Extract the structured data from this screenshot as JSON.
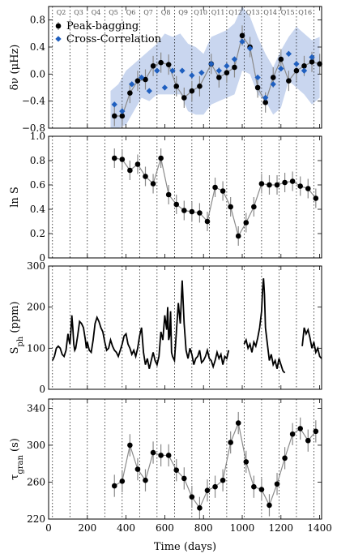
{
  "colors": {
    "black": "#000000",
    "blue": "#1f5fbf",
    "band": "#c9d6ef",
    "connector": "#8a8a8a"
  },
  "quarters": {
    "labels": [
      "Q2",
      "Q3",
      "Q4",
      "Q5",
      "Q6",
      "Q7",
      "Q8",
      "Q9",
      "Q10",
      "Q11",
      "Q12",
      "Q13",
      "Q14",
      "Q15",
      "Q16"
    ],
    "boundaries": [
      20,
      110,
      200,
      290,
      380,
      470,
      560,
      650,
      740,
      830,
      920,
      1010,
      1100,
      1190,
      1280,
      1370
    ]
  },
  "x_axis": {
    "label": "Time (days)",
    "range": [
      0,
      1410
    ],
    "ticks": [
      0,
      200,
      400,
      600,
      800,
      1000,
      1200,
      1400
    ]
  },
  "chart_data": [
    {
      "type": "scatter",
      "ylabel": "δν (μHz)",
      "ylim": [
        -0.8,
        1.0
      ],
      "yticks": [
        -0.8,
        -0.4,
        0.0,
        0.4,
        0.8
      ],
      "ytick_labels": [
        "−0.8",
        "−0.4",
        "0.0",
        "0.4",
        "0.8"
      ],
      "legend": {
        "placement": "top-left",
        "entries": [
          "Peak-bagging",
          "Cross-Correlation"
        ]
      },
      "band": {
        "x": [
          320,
          360,
          400,
          440,
          480,
          520,
          560,
          600,
          640,
          680,
          720,
          760,
          800,
          840,
          880,
          920,
          960,
          1000,
          1040,
          1080,
          1120,
          1160,
          1200,
          1240,
          1280,
          1320,
          1360,
          1400
        ],
        "upper": [
          -0.25,
          -0.15,
          0.05,
          0.15,
          0.25,
          0.35,
          0.45,
          0.6,
          0.55,
          0.6,
          0.45,
          0.4,
          0.3,
          0.55,
          0.6,
          0.65,
          0.75,
          1.0,
          0.85,
          0.55,
          0.3,
          0.1,
          0.35,
          0.55,
          0.7,
          0.6,
          0.5,
          0.55
        ],
        "lower": [
          -0.8,
          -0.8,
          -0.75,
          -0.55,
          -0.35,
          -0.4,
          -0.3,
          -0.3,
          -0.3,
          -0.3,
          -0.55,
          -0.6,
          -0.6,
          -0.45,
          -0.4,
          -0.35,
          -0.3,
          0.05,
          0.0,
          -0.3,
          -0.4,
          -0.6,
          -0.5,
          -0.1,
          -0.2,
          -0.3,
          -0.45,
          -0.35
        ]
      },
      "series": [
        {
          "name": "Peak-bagging",
          "x": [
            340,
            380,
            420,
            460,
            500,
            540,
            580,
            620,
            660,
            700,
            740,
            780,
            840,
            880,
            920,
            960,
            1000,
            1040,
            1080,
            1120,
            1160,
            1200,
            1240,
            1280,
            1320,
            1360,
            1400
          ],
          "y": [
            -0.62,
            -0.62,
            -0.28,
            -0.1,
            -0.08,
            0.12,
            0.17,
            0.14,
            -0.18,
            -0.35,
            -0.25,
            -0.18,
            0.15,
            -0.05,
            0.02,
            0.1,
            0.57,
            0.4,
            -0.2,
            -0.42,
            -0.05,
            0.22,
            -0.1,
            0.05,
            0.12,
            0.18,
            0.15
          ],
          "err": [
            0.15,
            0.15,
            0.15,
            0.15,
            0.15,
            0.15,
            0.15,
            0.15,
            0.15,
            0.15,
            0.15,
            0.15,
            0.15,
            0.15,
            0.15,
            0.15,
            0.15,
            0.15,
            0.15,
            0.15,
            0.15,
            0.15,
            0.15,
            0.15,
            0.15,
            0.15,
            0.15
          ]
        },
        {
          "name": "Cross-Correlation",
          "x": [
            340,
            380,
            430,
            480,
            520,
            560,
            600,
            640,
            690,
            740,
            790,
            840,
            880,
            920,
            960,
            1000,
            1040,
            1080,
            1120,
            1160,
            1200,
            1240,
            1280,
            1320,
            1360
          ],
          "y": [
            -0.45,
            -0.55,
            -0.15,
            -0.05,
            -0.25,
            0.05,
            -0.2,
            0.05,
            0.05,
            -0.02,
            0.02,
            0.15,
            0.05,
            0.12,
            0.22,
            0.48,
            0.38,
            -0.05,
            -0.35,
            -0.15,
            0.08,
            0.3,
            0.15,
            0.05,
            0.25
          ]
        }
      ]
    },
    {
      "type": "line",
      "ylabel": "ln S",
      "ylim": [
        0,
        1.0
      ],
      "yticks": [
        0,
        0.2,
        0.4,
        0.6,
        0.8,
        1.0
      ],
      "ytick_labels": [
        "0",
        "0.2",
        "0.4",
        "0.6",
        "0.8",
        "1.0"
      ],
      "series": [
        {
          "x": [
            340,
            380,
            420,
            460,
            500,
            540,
            580,
            620,
            660,
            700,
            740,
            780,
            820,
            860,
            900,
            940,
            980,
            1020,
            1060,
            1100,
            1140,
            1180,
            1220,
            1260,
            1300,
            1340,
            1380
          ],
          "y": [
            0.82,
            0.81,
            0.72,
            0.77,
            0.67,
            0.61,
            0.82,
            0.52,
            0.44,
            0.39,
            0.38,
            0.37,
            0.3,
            0.58,
            0.55,
            0.42,
            0.18,
            0.29,
            0.42,
            0.61,
            0.6,
            0.6,
            0.62,
            0.63,
            0.59,
            0.57,
            0.49
          ],
          "err": [
            0.08,
            0.08,
            0.08,
            0.08,
            0.08,
            0.08,
            0.08,
            0.08,
            0.08,
            0.08,
            0.08,
            0.08,
            0.08,
            0.08,
            0.08,
            0.08,
            0.08,
            0.08,
            0.08,
            0.08,
            0.08,
            0.08,
            0.08,
            0.08,
            0.08,
            0.08,
            0.08
          ]
        }
      ]
    },
    {
      "type": "line",
      "ylabel": "S_ph (ppm)",
      "ylim": [
        0,
        300
      ],
      "yticks": [
        0,
        100,
        200,
        300
      ],
      "ytick_labels": [
        "0",
        "100",
        "200",
        "300"
      ],
      "series": [
        {
          "x": [
            20,
            30,
            40,
            50,
            60,
            70,
            80,
            90,
            100,
            105,
            110,
            115,
            120,
            125,
            130,
            135,
            140,
            150,
            160,
            170,
            180,
            190,
            195,
            200,
            210,
            220,
            230,
            240,
            250,
            260,
            270,
            280,
            290,
            300,
            310,
            320,
            330,
            340,
            350,
            360,
            370,
            380,
            390,
            400,
            410,
            420,
            430,
            440,
            450,
            460,
            470,
            480,
            490,
            500,
            510,
            520,
            530,
            540,
            550,
            560,
            570,
            580,
            590,
            600,
            610,
            615,
            620,
            625,
            630,
            635,
            640,
            650,
            660,
            670,
            680,
            690,
            700,
            710,
            720,
            730,
            740,
            750,
            760,
            770,
            780,
            790,
            800,
            810,
            820,
            830,
            840,
            850,
            860,
            870,
            880,
            890,
            900,
            910,
            920,
            930
          ],
          "y": [
            70,
            80,
            100,
            105,
            100,
            85,
            80,
            95,
            135,
            120,
            110,
            140,
            180,
            150,
            110,
            95,
            100,
            130,
            165,
            160,
            150,
            120,
            100,
            115,
            95,
            90,
            120,
            160,
            175,
            165,
            150,
            140,
            115,
            95,
            100,
            120,
            105,
            95,
            90,
            80,
            95,
            110,
            130,
            135,
            110,
            100,
            85,
            95,
            80,
            100,
            130,
            150,
            90,
            60,
            75,
            50,
            70,
            90,
            70,
            60,
            80,
            140,
            120,
            180,
            145,
            200,
            120,
            130,
            190,
            90,
            80,
            70,
            140,
            210,
            160,
            265,
            160,
            95,
            75,
            100,
            85,
            60,
            75,
            80,
            95,
            65,
            70,
            80,
            95,
            75,
            70,
            55,
            70,
            90,
            75,
            85,
            60,
            80,
            75,
            95
          ]
        },
        {
          "x": [
            1010,
            1020,
            1030,
            1040,
            1050,
            1060,
            1070,
            1080,
            1090,
            1100,
            1105,
            1110,
            1115,
            1120,
            1130,
            1140,
            1150,
            1160,
            1170,
            1180,
            1190,
            1200,
            1210,
            1220
          ],
          "y": [
            110,
            120,
            100,
            110,
            90,
            115,
            105,
            125,
            150,
            190,
            240,
            270,
            230,
            150,
            110,
            70,
            85,
            60,
            70,
            50,
            75,
            60,
            45,
            40
          ]
        },
        {
          "x": [
            1310,
            1320,
            1330,
            1340,
            1350,
            1360,
            1370,
            1380,
            1390,
            1400,
            1410
          ],
          "y": [
            105,
            150,
            135,
            145,
            125,
            100,
            115,
            90,
            100,
            80,
            75
          ]
        }
      ]
    },
    {
      "type": "line",
      "ylabel": "τ_gran (s)",
      "ylim": [
        220,
        350
      ],
      "yticks": [
        220,
        260,
        300,
        340
      ],
      "ytick_labels": [
        "220",
        "260",
        "300",
        "340"
      ],
      "series": [
        {
          "x": [
            340,
            380,
            420,
            460,
            500,
            540,
            580,
            620,
            660,
            700,
            740,
            780,
            820,
            860,
            900,
            940,
            980,
            1020,
            1060,
            1100,
            1140,
            1180,
            1220,
            1260,
            1300,
            1340,
            1380
          ],
          "y": [
            256,
            261,
            300,
            274,
            262,
            292,
            289,
            289,
            273,
            264,
            244,
            232,
            251,
            255,
            262,
            303,
            324,
            282,
            255,
            252,
            235,
            258,
            286,
            312,
            318,
            305,
            315
          ],
          "err": [
            12,
            12,
            12,
            12,
            12,
            12,
            12,
            12,
            12,
            12,
            12,
            12,
            12,
            12,
            12,
            12,
            12,
            12,
            12,
            12,
            12,
            12,
            12,
            12,
            12,
            12,
            12
          ]
        }
      ]
    }
  ]
}
